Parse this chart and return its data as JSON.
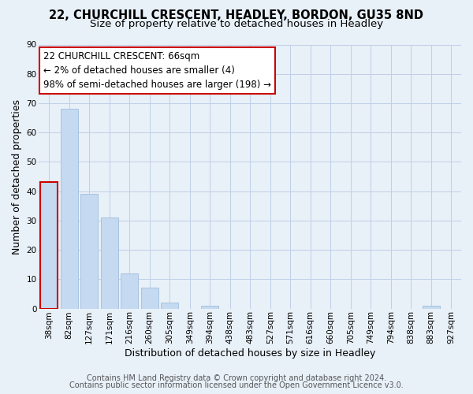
{
  "title": "22, CHURCHILL CRESCENT, HEADLEY, BORDON, GU35 8ND",
  "subtitle": "Size of property relative to detached houses in Headley",
  "xlabel": "Distribution of detached houses by size in Headley",
  "ylabel": "Number of detached properties",
  "footer_line1": "Contains HM Land Registry data © Crown copyright and database right 2024.",
  "footer_line2": "Contains public sector information licensed under the Open Government Licence v3.0.",
  "bin_labels": [
    "38sqm",
    "82sqm",
    "127sqm",
    "171sqm",
    "216sqm",
    "260sqm",
    "305sqm",
    "349sqm",
    "394sqm",
    "438sqm",
    "483sqm",
    "527sqm",
    "571sqm",
    "616sqm",
    "660sqm",
    "705sqm",
    "749sqm",
    "794sqm",
    "838sqm",
    "883sqm",
    "927sqm"
  ],
  "bar_heights": [
    43,
    68,
    39,
    31,
    12,
    7,
    2,
    0,
    1,
    0,
    0,
    0,
    0,
    0,
    0,
    0,
    0,
    0,
    0,
    1,
    0
  ],
  "bar_color": "#c5d9f0",
  "bar_edge_color": "#a8c4e0",
  "highlight_bar_index": 0,
  "highlight_edge_color": "#cc0000",
  "annotation_line1": "22 CHURCHILL CRESCENT: 66sqm",
  "annotation_line2": "← 2% of detached houses are smaller (4)",
  "annotation_line3": "98% of semi-detached houses are larger (198) →",
  "ylim": [
    0,
    90
  ],
  "yticks": [
    0,
    10,
    20,
    30,
    40,
    50,
    60,
    70,
    80,
    90
  ],
  "grid_color": "#c0d0e8",
  "background_color": "#e8f0f8",
  "title_fontsize": 10.5,
  "subtitle_fontsize": 9.5,
  "axis_label_fontsize": 9,
  "tick_fontsize": 7.5,
  "footer_fontsize": 7,
  "annotation_fontsize": 8.5
}
